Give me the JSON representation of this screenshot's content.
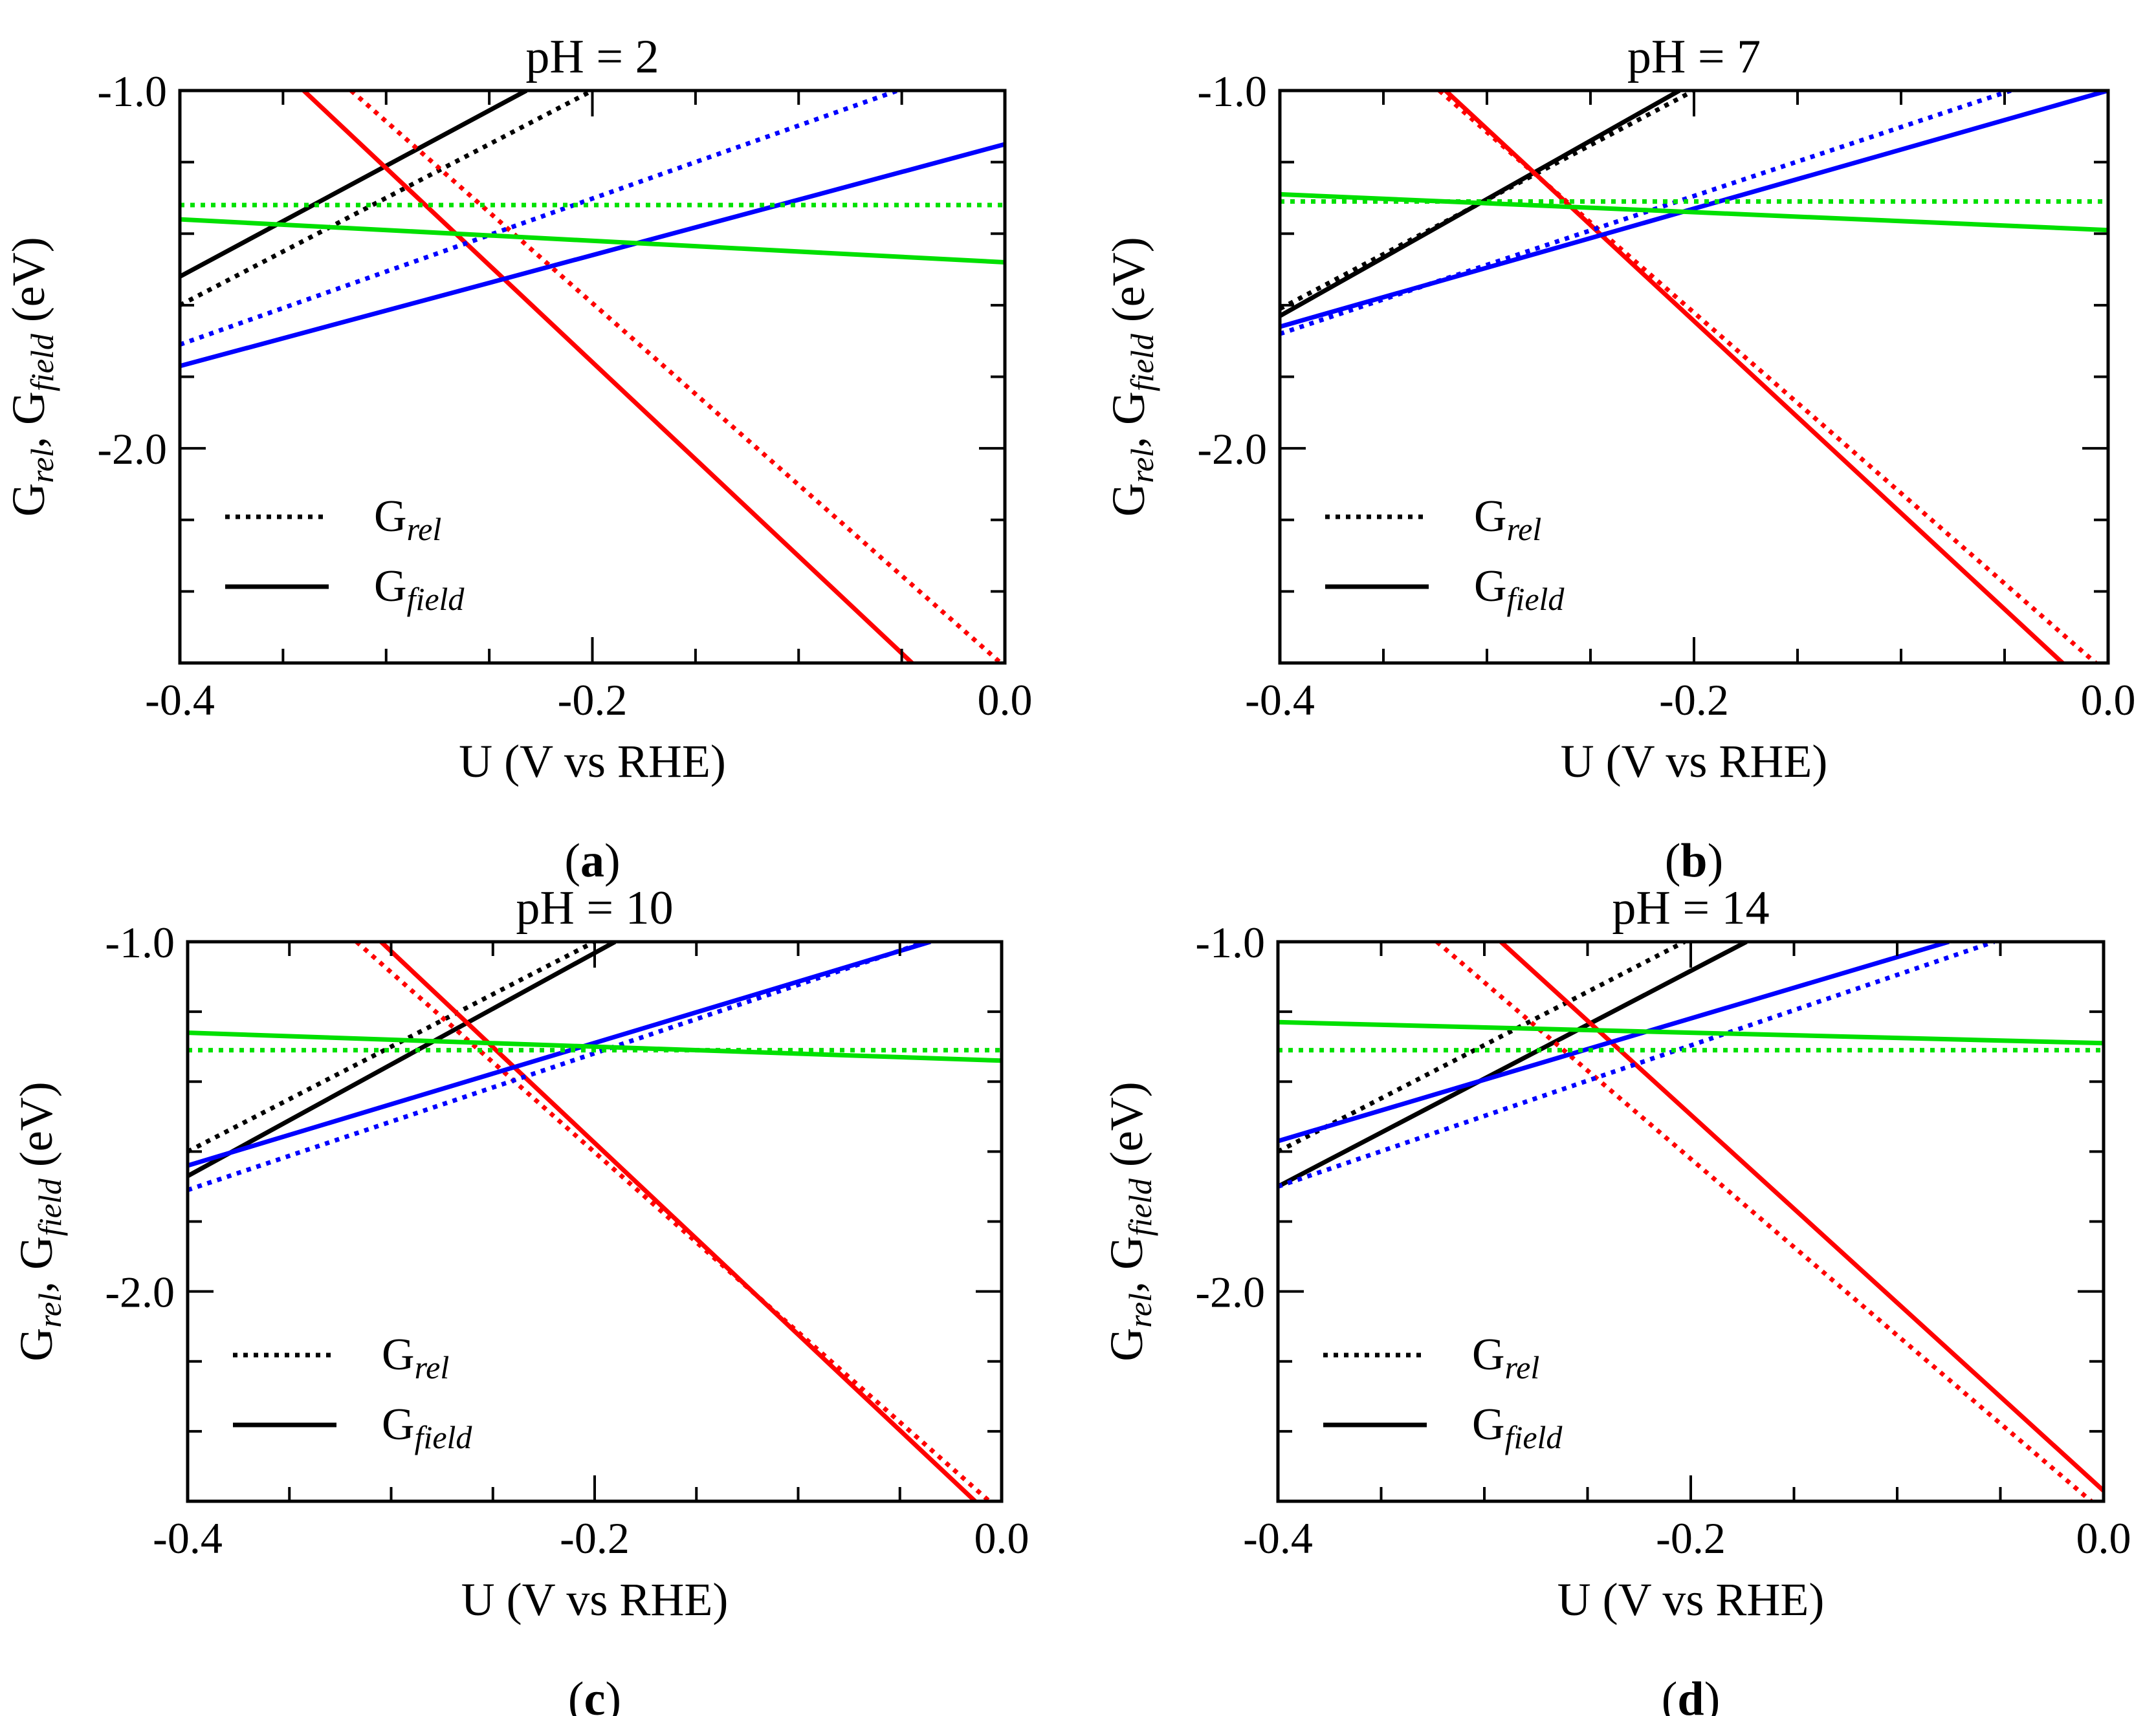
{
  "chart_data": [
    {
      "type": "line",
      "panel_label": "a",
      "title": "pH = 2",
      "xlabel": "U (V vs RHE)",
      "ylabel": {
        "p1": "G",
        "s1": "rel",
        "p2": ", G",
        "s2": "field",
        "p3": " (eV)"
      },
      "xlim": [
        -0.4,
        0.0
      ],
      "ylim": [
        -2.6,
        -1.0
      ],
      "xticks": [
        -0.4,
        -0.2,
        0.0
      ],
      "xtick_labels": [
        "-0.4",
        "-0.2",
        "0.0"
      ],
      "yticks": [
        -1.0,
        -2.0
      ],
      "ytick_labels": [
        "-1.0",
        "-2.0"
      ],
      "legend": {
        "placement": "lower-left",
        "entries": [
          {
            "base": "G",
            "sub": "rel",
            "style": "dotted"
          },
          {
            "base": "G",
            "sub": "field",
            "style": "solid"
          }
        ]
      },
      "series": [
        {
          "color": "#000000",
          "style": "dotted",
          "x": [
            -0.4,
            -0.2
          ],
          "y": [
            -1.6,
            -1.0
          ]
        },
        {
          "color": "#000000",
          "style": "solid",
          "x": [
            -0.4,
            -0.232
          ],
          "y": [
            -1.52,
            -1.0
          ]
        },
        {
          "color": "#ff0000",
          "style": "dotted",
          "x": [
            -0.317,
            -0.002
          ],
          "y": [
            -1.0,
            -2.6
          ]
        },
        {
          "color": "#ff0000",
          "style": "solid",
          "x": [
            -0.34,
            -0.045
          ],
          "y": [
            -1.0,
            -2.6
          ]
        },
        {
          "color": "#0000ff",
          "style": "dotted",
          "x": [
            -0.4,
            -0.052
          ],
          "y": [
            -1.71,
            -1.0
          ]
        },
        {
          "color": "#0000ff",
          "style": "solid",
          "x": [
            -0.4,
            0.0
          ],
          "y": [
            -1.77,
            -1.15
          ]
        },
        {
          "color": "#00e000",
          "style": "dotted",
          "x": [
            -0.4,
            0.0
          ],
          "y": [
            -1.32,
            -1.32
          ]
        },
        {
          "color": "#00e000",
          "style": "solid",
          "x": [
            -0.4,
            0.0
          ],
          "y": [
            -1.36,
            -1.48
          ]
        }
      ]
    },
    {
      "type": "line",
      "panel_label": "b",
      "title": "pH = 7",
      "xlabel": "U (V vs RHE)",
      "ylabel": {
        "p1": "G",
        "s1": "rel",
        "p2": ", G",
        "s2": "field",
        "p3": " (eV)"
      },
      "xlim": [
        -0.4,
        0.0
      ],
      "ylim": [
        -2.6,
        -1.0
      ],
      "xticks": [
        -0.4,
        -0.2,
        0.0
      ],
      "xtick_labels": [
        "-0.4",
        "-0.2",
        "0.0"
      ],
      "yticks": [
        -1.0,
        -2.0
      ],
      "ytick_labels": [
        "-1.0",
        "-2.0"
      ],
      "legend": {
        "placement": "lower-left",
        "entries": [
          {
            "base": "G",
            "sub": "rel",
            "style": "dotted"
          },
          {
            "base": "G",
            "sub": "field",
            "style": "solid"
          }
        ]
      },
      "series": [
        {
          "color": "#000000",
          "style": "dotted",
          "x": [
            -0.4,
            -0.2
          ],
          "y": [
            -1.61,
            -1.0
          ]
        },
        {
          "color": "#000000",
          "style": "solid",
          "x": [
            -0.4,
            -0.207
          ],
          "y": [
            -1.63,
            -1.0
          ]
        },
        {
          "color": "#ff0000",
          "style": "dotted",
          "x": [
            -0.323,
            -0.006
          ],
          "y": [
            -1.0,
            -2.6
          ]
        },
        {
          "color": "#ff0000",
          "style": "solid",
          "x": [
            -0.32,
            -0.022
          ],
          "y": [
            -1.0,
            -2.6
          ]
        },
        {
          "color": "#0000ff",
          "style": "dotted",
          "x": [
            -0.4,
            -0.047
          ],
          "y": [
            -1.68,
            -1.0
          ]
        },
        {
          "color": "#0000ff",
          "style": "solid",
          "x": [
            -0.4,
            0.0
          ],
          "y": [
            -1.66,
            -1.0
          ]
        },
        {
          "color": "#00e000",
          "style": "dotted",
          "x": [
            -0.4,
            0.0
          ],
          "y": [
            -1.31,
            -1.31
          ]
        },
        {
          "color": "#00e000",
          "style": "solid",
          "x": [
            -0.4,
            0.0
          ],
          "y": [
            -1.29,
            -1.39
          ]
        }
      ]
    },
    {
      "type": "line",
      "panel_label": "c",
      "title": "pH = 10",
      "xlabel": "U (V vs RHE)",
      "ylabel": {
        "p1": "G",
        "s1": "rel",
        "p2": ", G",
        "s2": "field",
        "p3": " (eV)"
      },
      "xlim": [
        -0.4,
        0.0
      ],
      "ylim": [
        -2.6,
        -1.0
      ],
      "xticks": [
        -0.4,
        -0.2,
        0.0
      ],
      "xtick_labels": [
        "-0.4",
        "-0.2",
        "0.0"
      ],
      "yticks": [
        -1.0,
        -2.0
      ],
      "ytick_labels": [
        "-1.0",
        "-2.0"
      ],
      "legend": {
        "placement": "lower-left",
        "entries": [
          {
            "base": "G",
            "sub": "rel",
            "style": "dotted"
          },
          {
            "base": "G",
            "sub": "field",
            "style": "solid"
          }
        ]
      },
      "series": [
        {
          "color": "#000000",
          "style": "dotted",
          "x": [
            -0.4,
            -0.2
          ],
          "y": [
            -1.6,
            -1.0
          ]
        },
        {
          "color": "#000000",
          "style": "solid",
          "x": [
            -0.4,
            -0.19
          ],
          "y": [
            -1.67,
            -1.0
          ]
        },
        {
          "color": "#ff0000",
          "style": "dotted",
          "x": [
            -0.317,
            -0.006
          ],
          "y": [
            -1.0,
            -2.6
          ]
        },
        {
          "color": "#ff0000",
          "style": "solid",
          "x": [
            -0.305,
            -0.013
          ],
          "y": [
            -1.0,
            -2.6
          ]
        },
        {
          "color": "#0000ff",
          "style": "dotted",
          "x": [
            -0.4,
            -0.037
          ],
          "y": [
            -1.71,
            -1.0
          ]
        },
        {
          "color": "#0000ff",
          "style": "solid",
          "x": [
            -0.4,
            -0.035
          ],
          "y": [
            -1.64,
            -1.0
          ]
        },
        {
          "color": "#00e000",
          "style": "dotted",
          "x": [
            -0.4,
            0.0
          ],
          "y": [
            -1.31,
            -1.31
          ]
        },
        {
          "color": "#00e000",
          "style": "solid",
          "x": [
            -0.4,
            0.0
          ],
          "y": [
            -1.26,
            -1.34
          ]
        }
      ]
    },
    {
      "type": "line",
      "panel_label": "d",
      "title": "pH = 14",
      "xlabel": "U (V vs RHE)",
      "ylabel": {
        "p1": "G",
        "s1": "rel",
        "p2": ", G",
        "s2": "field",
        "p3": " (eV)"
      },
      "xlim": [
        -0.4,
        0.0
      ],
      "ylim": [
        -2.6,
        -1.0
      ],
      "xticks": [
        -0.4,
        -0.2,
        0.0
      ],
      "xtick_labels": [
        "-0.4",
        "-0.2",
        "0.0"
      ],
      "yticks": [
        -1.0,
        -2.0
      ],
      "ytick_labels": [
        "-1.0",
        "-2.0"
      ],
      "legend": {
        "placement": "lower-left",
        "entries": [
          {
            "base": "G",
            "sub": "rel",
            "style": "dotted"
          },
          {
            "base": "G",
            "sub": "field",
            "style": "solid"
          }
        ]
      },
      "series": [
        {
          "color": "#000000",
          "style": "dotted",
          "x": [
            -0.4,
            -0.203
          ],
          "y": [
            -1.6,
            -1.0
          ]
        },
        {
          "color": "#000000",
          "style": "solid",
          "x": [
            -0.4,
            -0.173
          ],
          "y": [
            -1.7,
            -1.0
          ]
        },
        {
          "color": "#ff0000",
          "style": "dotted",
          "x": [
            -0.323,
            -0.006
          ],
          "y": [
            -1.0,
            -2.6
          ]
        },
        {
          "color": "#ff0000",
          "style": "solid",
          "x": [
            -0.292,
            0.0
          ],
          "y": [
            -1.0,
            -2.57
          ]
        },
        {
          "color": "#0000ff",
          "style": "dotted",
          "x": [
            -0.4,
            -0.053
          ],
          "y": [
            -1.7,
            -1.0
          ]
        },
        {
          "color": "#0000ff",
          "style": "solid",
          "x": [
            -0.4,
            -0.075
          ],
          "y": [
            -1.57,
            -1.0
          ]
        },
        {
          "color": "#00e000",
          "style": "dotted",
          "x": [
            -0.4,
            0.0
          ],
          "y": [
            -1.31,
            -1.31
          ]
        },
        {
          "color": "#00e000",
          "style": "solid",
          "x": [
            -0.4,
            0.0
          ],
          "y": [
            -1.23,
            -1.29
          ]
        }
      ]
    }
  ]
}
